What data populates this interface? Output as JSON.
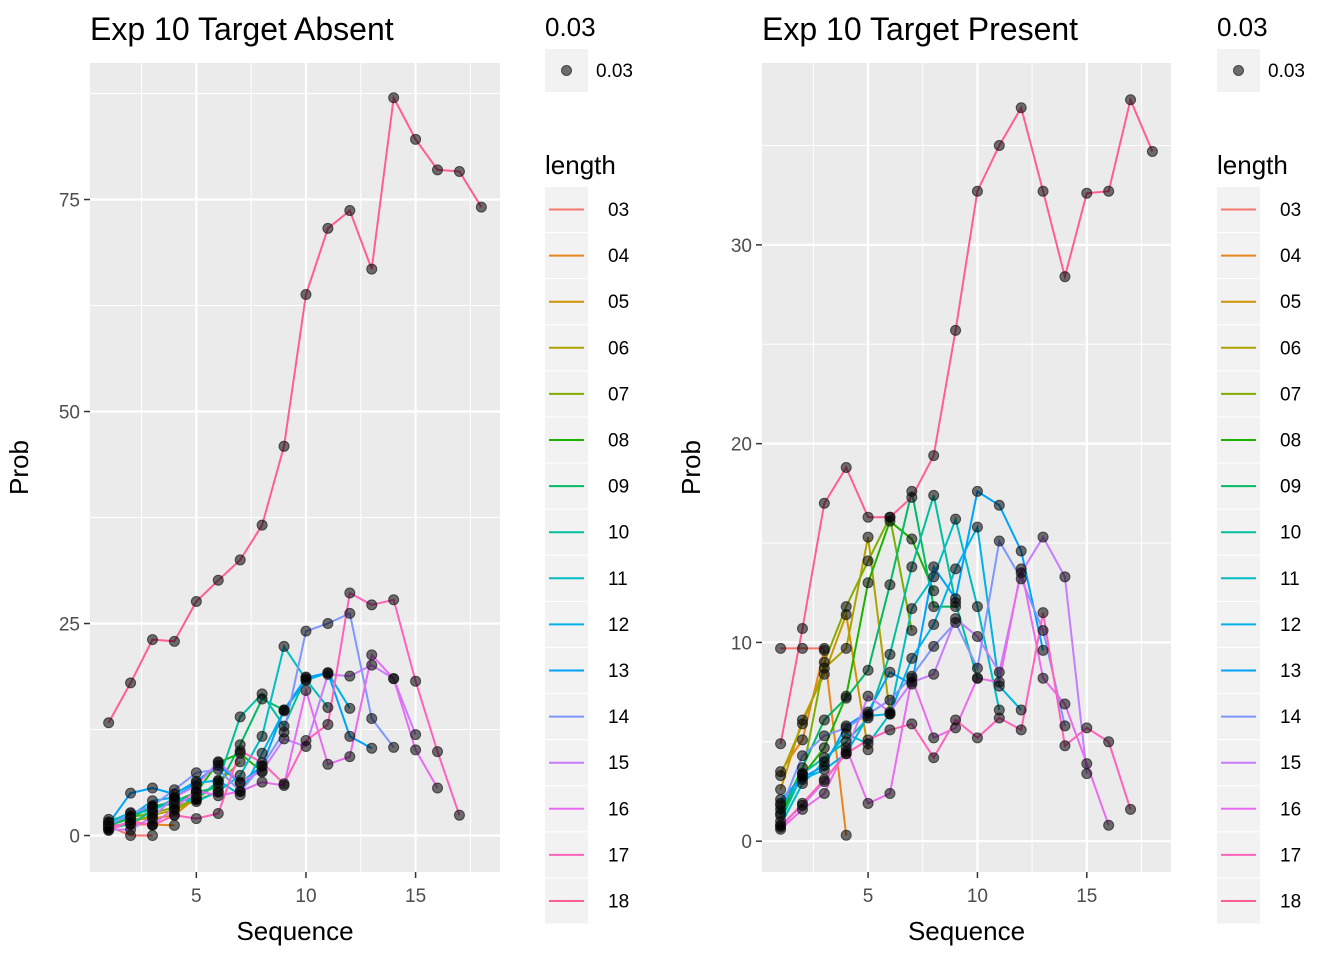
{
  "legend": {
    "size_title": "0.03",
    "size_label": "0.03",
    "color_title": "length",
    "entries": [
      {
        "label": "03",
        "color": "#F8766D"
      },
      {
        "label": "04",
        "color": "#E7851E"
      },
      {
        "label": "05",
        "color": "#CF9400"
      },
      {
        "label": "06",
        "color": "#AEA200"
      },
      {
        "label": "07",
        "color": "#81AD00"
      },
      {
        "label": "08",
        "color": "#1AB400"
      },
      {
        "label": "09",
        "color": "#00BA64"
      },
      {
        "label": "10",
        "color": "#00BF9C"
      },
      {
        "label": "11",
        "color": "#00BCC4"
      },
      {
        "label": "12",
        "color": "#00B2E6"
      },
      {
        "label": "13",
        "color": "#00A2FF"
      },
      {
        "label": "14",
        "color": "#7F96FF"
      },
      {
        "label": "15",
        "color": "#C77CFF"
      },
      {
        "label": "16",
        "color": "#EA6AF1"
      },
      {
        "label": "17",
        "color": "#FF62BC"
      },
      {
        "label": "18",
        "color": "#FF5E90"
      }
    ]
  },
  "chart_data": [
    {
      "type": "line",
      "title": "Exp 10 Target Absent",
      "xlabel": "Sequence",
      "ylabel": "Prob",
      "xlim": [
        0.15,
        18.85
      ],
      "ylim": [
        -4.3,
        91.1
      ],
      "xticks": [
        5,
        10,
        15
      ],
      "yticks": [
        0,
        25,
        50,
        75
      ],
      "series": [
        {
          "name": "03",
          "x": [
            1,
            2,
            3
          ],
          "y": [
            1.1,
            0,
            0
          ]
        },
        {
          "name": "04",
          "x": [
            1,
            2,
            3,
            4
          ],
          "y": [
            1.2,
            1.3,
            1.3,
            1.2
          ]
        },
        {
          "name": "05",
          "x": [
            1,
            2,
            3,
            4,
            5
          ],
          "y": [
            1.5,
            1.9,
            2.0,
            2.4,
            4.5
          ]
        },
        {
          "name": "06",
          "x": [
            1,
            2,
            3,
            4,
            5,
            6
          ],
          "y": [
            1.0,
            1.5,
            2.4,
            3.0,
            4.2,
            5.1
          ]
        },
        {
          "name": "07",
          "x": [
            1,
            2,
            3,
            4,
            5,
            6,
            7
          ],
          "y": [
            1.6,
            2.1,
            2.7,
            3.3,
            4.3,
            6.2,
            8.7
          ]
        },
        {
          "name": "08",
          "x": [
            1,
            2,
            3,
            4,
            5,
            6,
            7,
            8
          ],
          "y": [
            1.9,
            2.2,
            3.4,
            4.0,
            5.1,
            8.6,
            9.7,
            7.5
          ]
        },
        {
          "name": "09",
          "x": [
            1,
            2,
            3,
            4,
            5,
            6,
            7,
            8,
            9
          ],
          "y": [
            1.2,
            2.0,
            3.5,
            3.7,
            5.1,
            5.7,
            10.7,
            16.1,
            14.8
          ]
        },
        {
          "name": "10",
          "x": [
            1,
            2,
            3,
            4,
            5,
            6,
            7,
            8,
            9,
            10
          ],
          "y": [
            0.8,
            1.4,
            2.9,
            4.4,
            4.3,
            6.4,
            14.0,
            16.7,
            12.9,
            18.7
          ]
        },
        {
          "name": "11",
          "x": [
            1,
            2,
            3,
            4,
            5,
            6,
            7,
            8,
            9,
            10,
            11
          ],
          "y": [
            1.6,
            2.7,
            2.9,
            4.3,
            4.0,
            5.2,
            7.1,
            11.7,
            22.3,
            18.4,
            15.1
          ]
        },
        {
          "name": "12",
          "x": [
            1,
            2,
            3,
            4,
            5,
            6,
            7,
            8,
            9,
            10,
            11,
            12
          ],
          "y": [
            1.5,
            2.3,
            4.1,
            4.5,
            6.2,
            6.5,
            4.8,
            9.7,
            14.7,
            18.3,
            19.2,
            15.0
          ]
        },
        {
          "name": "13",
          "x": [
            1,
            2,
            3,
            4,
            5,
            6,
            7,
            8,
            9,
            10,
            11,
            12,
            13
          ],
          "y": [
            1.4,
            5.0,
            5.6,
            4.9,
            6.4,
            8.3,
            6.2,
            8.2,
            14.8,
            18.6,
            19.2,
            11.7,
            10.3
          ]
        },
        {
          "name": "14",
          "x": [
            1,
            2,
            3,
            4,
            5,
            6,
            7,
            8,
            9,
            10,
            11,
            12,
            13,
            14
          ],
          "y": [
            1.2,
            2.6,
            3.5,
            5.4,
            7.4,
            7.8,
            5.2,
            8.2,
            12.2,
            24.1,
            25.0,
            26.2,
            13.8,
            10.4
          ]
        },
        {
          "name": "15",
          "x": [
            1,
            2,
            3,
            4,
            5,
            6,
            7,
            8,
            9,
            10,
            11,
            12,
            13,
            14,
            15
          ],
          "y": [
            0.7,
            0.7,
            2.2,
            4.5,
            5.9,
            8.7,
            6.3,
            7.6,
            11.4,
            10.5,
            19.0,
            18.8,
            20.1,
            18.5,
            11.9
          ]
        },
        {
          "name": "16",
          "x": [
            1,
            2,
            3,
            4,
            5,
            6,
            7,
            8,
            9,
            10,
            11,
            12,
            13,
            14,
            15,
            16
          ],
          "y": [
            0.9,
            1.6,
            1.3,
            3.2,
            5.3,
            4.7,
            5.2,
            6.3,
            5.9,
            17.1,
            8.4,
            9.3,
            21.3,
            18.5,
            10.1,
            5.6
          ]
        },
        {
          "name": "17",
          "x": [
            1,
            2,
            3,
            4,
            5,
            6,
            7,
            8,
            9,
            10,
            11,
            12,
            13,
            14,
            15,
            16,
            17
          ],
          "y": [
            0.6,
            1.7,
            1.2,
            2.4,
            2.0,
            2.6,
            10.0,
            8.6,
            6.1,
            11.2,
            13.1,
            28.6,
            27.2,
            27.8,
            18.2,
            9.9,
            2.4
          ]
        },
        {
          "name": "18",
          "x": [
            1,
            2,
            3,
            4,
            5,
            6,
            7,
            8,
            9,
            10,
            11,
            12,
            13,
            14,
            15,
            16,
            17,
            18
          ],
          "y": [
            13.3,
            18.0,
            23.1,
            22.9,
            27.6,
            30.1,
            32.5,
            36.6,
            45.9,
            63.8,
            71.6,
            73.7,
            66.8,
            87.0,
            82.1,
            78.5,
            78.3,
            74.1
          ]
        }
      ]
    },
    {
      "type": "line",
      "title": "Exp 10 Target Present",
      "xlabel": "Sequence",
      "ylabel": "Prob",
      "xlim": [
        0.15,
        18.85
      ],
      "ylim": [
        -1.55,
        39.15
      ],
      "xticks": [
        5,
        10,
        15
      ],
      "yticks": [
        0,
        10,
        20,
        30
      ],
      "series": [
        {
          "name": "03",
          "x": [
            1,
            2,
            3
          ],
          "y": [
            9.7,
            9.7,
            9.7
          ]
        },
        {
          "name": "04",
          "x": [
            1,
            2,
            3,
            4
          ],
          "y": [
            3.5,
            5.1,
            9.6,
            0.3
          ]
        },
        {
          "name": "05",
          "x": [
            1,
            2,
            3,
            4,
            5
          ],
          "y": [
            2.6,
            6.1,
            8.4,
            11.4,
            4.6
          ]
        },
        {
          "name": "06",
          "x": [
            1,
            2,
            3,
            4,
            5,
            6
          ],
          "y": [
            3.3,
            5.9,
            8.7,
            9.7,
            15.3,
            6.4
          ]
        },
        {
          "name": "07",
          "x": [
            1,
            2,
            3,
            4,
            5,
            6,
            7
          ],
          "y": [
            1.9,
            3.4,
            9.0,
            11.8,
            14.1,
            16.3,
            10.6
          ]
        },
        {
          "name": "08",
          "x": [
            1,
            2,
            3,
            4,
            5,
            6,
            7,
            8
          ],
          "y": [
            1.3,
            3.3,
            4.7,
            7.3,
            13.0,
            16.1,
            15.2,
            12.6
          ]
        },
        {
          "name": "09",
          "x": [
            1,
            2,
            3,
            4,
            5,
            6,
            7,
            8,
            9
          ],
          "y": [
            1.4,
            3.7,
            6.1,
            7.2,
            8.6,
            12.9,
            17.6,
            11.8,
            11.8
          ]
        },
        {
          "name": "10",
          "x": [
            1,
            2,
            3,
            4,
            5,
            6,
            7,
            8,
            9,
            10
          ],
          "y": [
            1.0,
            3.4,
            4.2,
            5.0,
            6.2,
            9.4,
            13.8,
            17.4,
            12.0,
            8.2
          ]
        },
        {
          "name": "11",
          "x": [
            1,
            2,
            3,
            4,
            5,
            6,
            7,
            8,
            9,
            10,
            11
          ],
          "y": [
            0.8,
            2.9,
            4.0,
            5.4,
            4.9,
            6.4,
            11.7,
            13.3,
            16.2,
            11.8,
            6.6
          ]
        },
        {
          "name": "12",
          "x": [
            1,
            2,
            3,
            4,
            5,
            6,
            7,
            8,
            9,
            10,
            11,
            12
          ],
          "y": [
            1.8,
            3.1,
            3.6,
            4.4,
            6.3,
            6.4,
            9.2,
            10.9,
            13.7,
            15.8,
            7.8,
            6.6
          ]
        },
        {
          "name": "13",
          "x": [
            1,
            2,
            3,
            4,
            5,
            6,
            7,
            8,
            9,
            10,
            11,
            12,
            13
          ],
          "y": [
            2.1,
            3.2,
            3.8,
            5.8,
            6.5,
            8.5,
            7.9,
            13.8,
            12.2,
            17.6,
            16.9,
            14.6,
            9.6
          ]
        },
        {
          "name": "14",
          "x": [
            1,
            2,
            3,
            4,
            5,
            6,
            7,
            8,
            9,
            10,
            11,
            12,
            13,
            14
          ],
          "y": [
            1.6,
            4.3,
            5.3,
            5.7,
            6.4,
            7.1,
            8.3,
            9.8,
            11.0,
            8.7,
            15.1,
            13.2,
            10.6,
            5.8
          ]
        },
        {
          "name": "15",
          "x": [
            1,
            2,
            3,
            4,
            5,
            6,
            7,
            8,
            9,
            10,
            11,
            12,
            13,
            14,
            15
          ],
          "y": [
            0.8,
            1.8,
            3.0,
            4.5,
            7.3,
            6.5,
            8.0,
            8.4,
            11.2,
            10.3,
            8.5,
            13.5,
            15.3,
            13.3,
            3.4
          ]
        },
        {
          "name": "16",
          "x": [
            1,
            2,
            3,
            4,
            5,
            6,
            7,
            8,
            9,
            10,
            11,
            12,
            13,
            14,
            15,
            16
          ],
          "y": [
            0.6,
            1.6,
            2.4,
            4.7,
            1.9,
            2.4,
            8.2,
            5.2,
            5.7,
            8.2,
            8.0,
            13.7,
            8.2,
            6.9,
            3.9,
            0.8
          ]
        },
        {
          "name": "17",
          "x": [
            1,
            2,
            3,
            4,
            5,
            6,
            7,
            8,
            9,
            10,
            11,
            12,
            13,
            14,
            15,
            16,
            17
          ],
          "y": [
            0.7,
            1.9,
            3.1,
            4.4,
            5.1,
            5.6,
            5.9,
            4.2,
            6.1,
            5.2,
            6.2,
            5.6,
            11.5,
            4.8,
            5.7,
            5.0,
            1.6
          ]
        },
        {
          "name": "18",
          "x": [
            1,
            2,
            3,
            4,
            5,
            6,
            7,
            8,
            9,
            10,
            11,
            12,
            13,
            14,
            15,
            16,
            17,
            18
          ],
          "y": [
            4.9,
            10.7,
            17.0,
            18.8,
            16.3,
            16.3,
            17.3,
            19.4,
            25.7,
            32.7,
            35.0,
            36.9,
            32.7,
            28.4,
            32.6,
            32.7,
            37.3,
            34.7
          ]
        }
      ]
    }
  ]
}
